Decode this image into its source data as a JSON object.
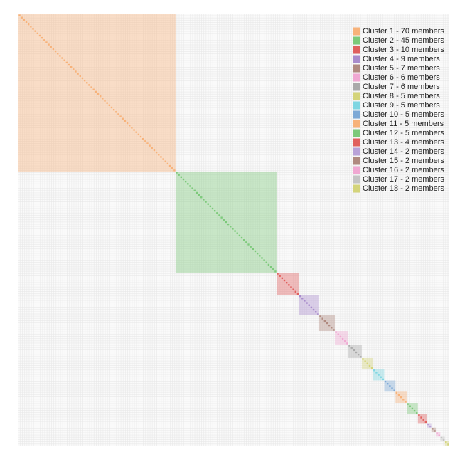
{
  "chart_data": {
    "type": "matrix",
    "clusters": [
      {
        "name": "Cluster 1 - 70 members",
        "color": "#f7b27a",
        "size": 70
      },
      {
        "name": "Cluster 2 - 45 members",
        "color": "#7cc97a",
        "size": 45
      },
      {
        "name": "Cluster 3 - 10 members",
        "color": "#e0605e",
        "size": 10
      },
      {
        "name": "Cluster 4 - 9 members",
        "color": "#a98ccc",
        "size": 9
      },
      {
        "name": "Cluster 5 - 7 members",
        "color": "#b08a80",
        "size": 7
      },
      {
        "name": "Cluster 6 - 6 members",
        "color": "#f0a8d2",
        "size": 6
      },
      {
        "name": "Cluster 7 - 6 members",
        "color": "#aaaaaa",
        "size": 6
      },
      {
        "name": "Cluster 8 - 5 members",
        "color": "#d4d47a",
        "size": 5
      },
      {
        "name": "Cluster 9 - 5 members",
        "color": "#7fd6e2",
        "size": 5
      },
      {
        "name": "Cluster 10 - 5 members",
        "color": "#7ea9d6",
        "size": 5
      },
      {
        "name": "Cluster 11 - 5 members",
        "color": "#f7b27a",
        "size": 5
      },
      {
        "name": "Cluster 12 - 5 members",
        "color": "#7cc97a",
        "size": 5
      },
      {
        "name": "Cluster 13 - 4 members",
        "color": "#e0605e",
        "size": 4
      },
      {
        "name": "Cluster 14 - 2 members",
        "color": "#b9a2d8",
        "size": 2
      },
      {
        "name": "Cluster 15 - 2 members",
        "color": "#b08a80",
        "size": 2
      },
      {
        "name": "Cluster 16 - 2 members",
        "color": "#f0a8d2",
        "size": 2
      },
      {
        "name": "Cluster 17 - 2 members",
        "color": "#c4c4c4",
        "size": 2
      },
      {
        "name": "Cluster 18 - 2 members",
        "color": "#d4d47a",
        "size": 2
      }
    ]
  }
}
